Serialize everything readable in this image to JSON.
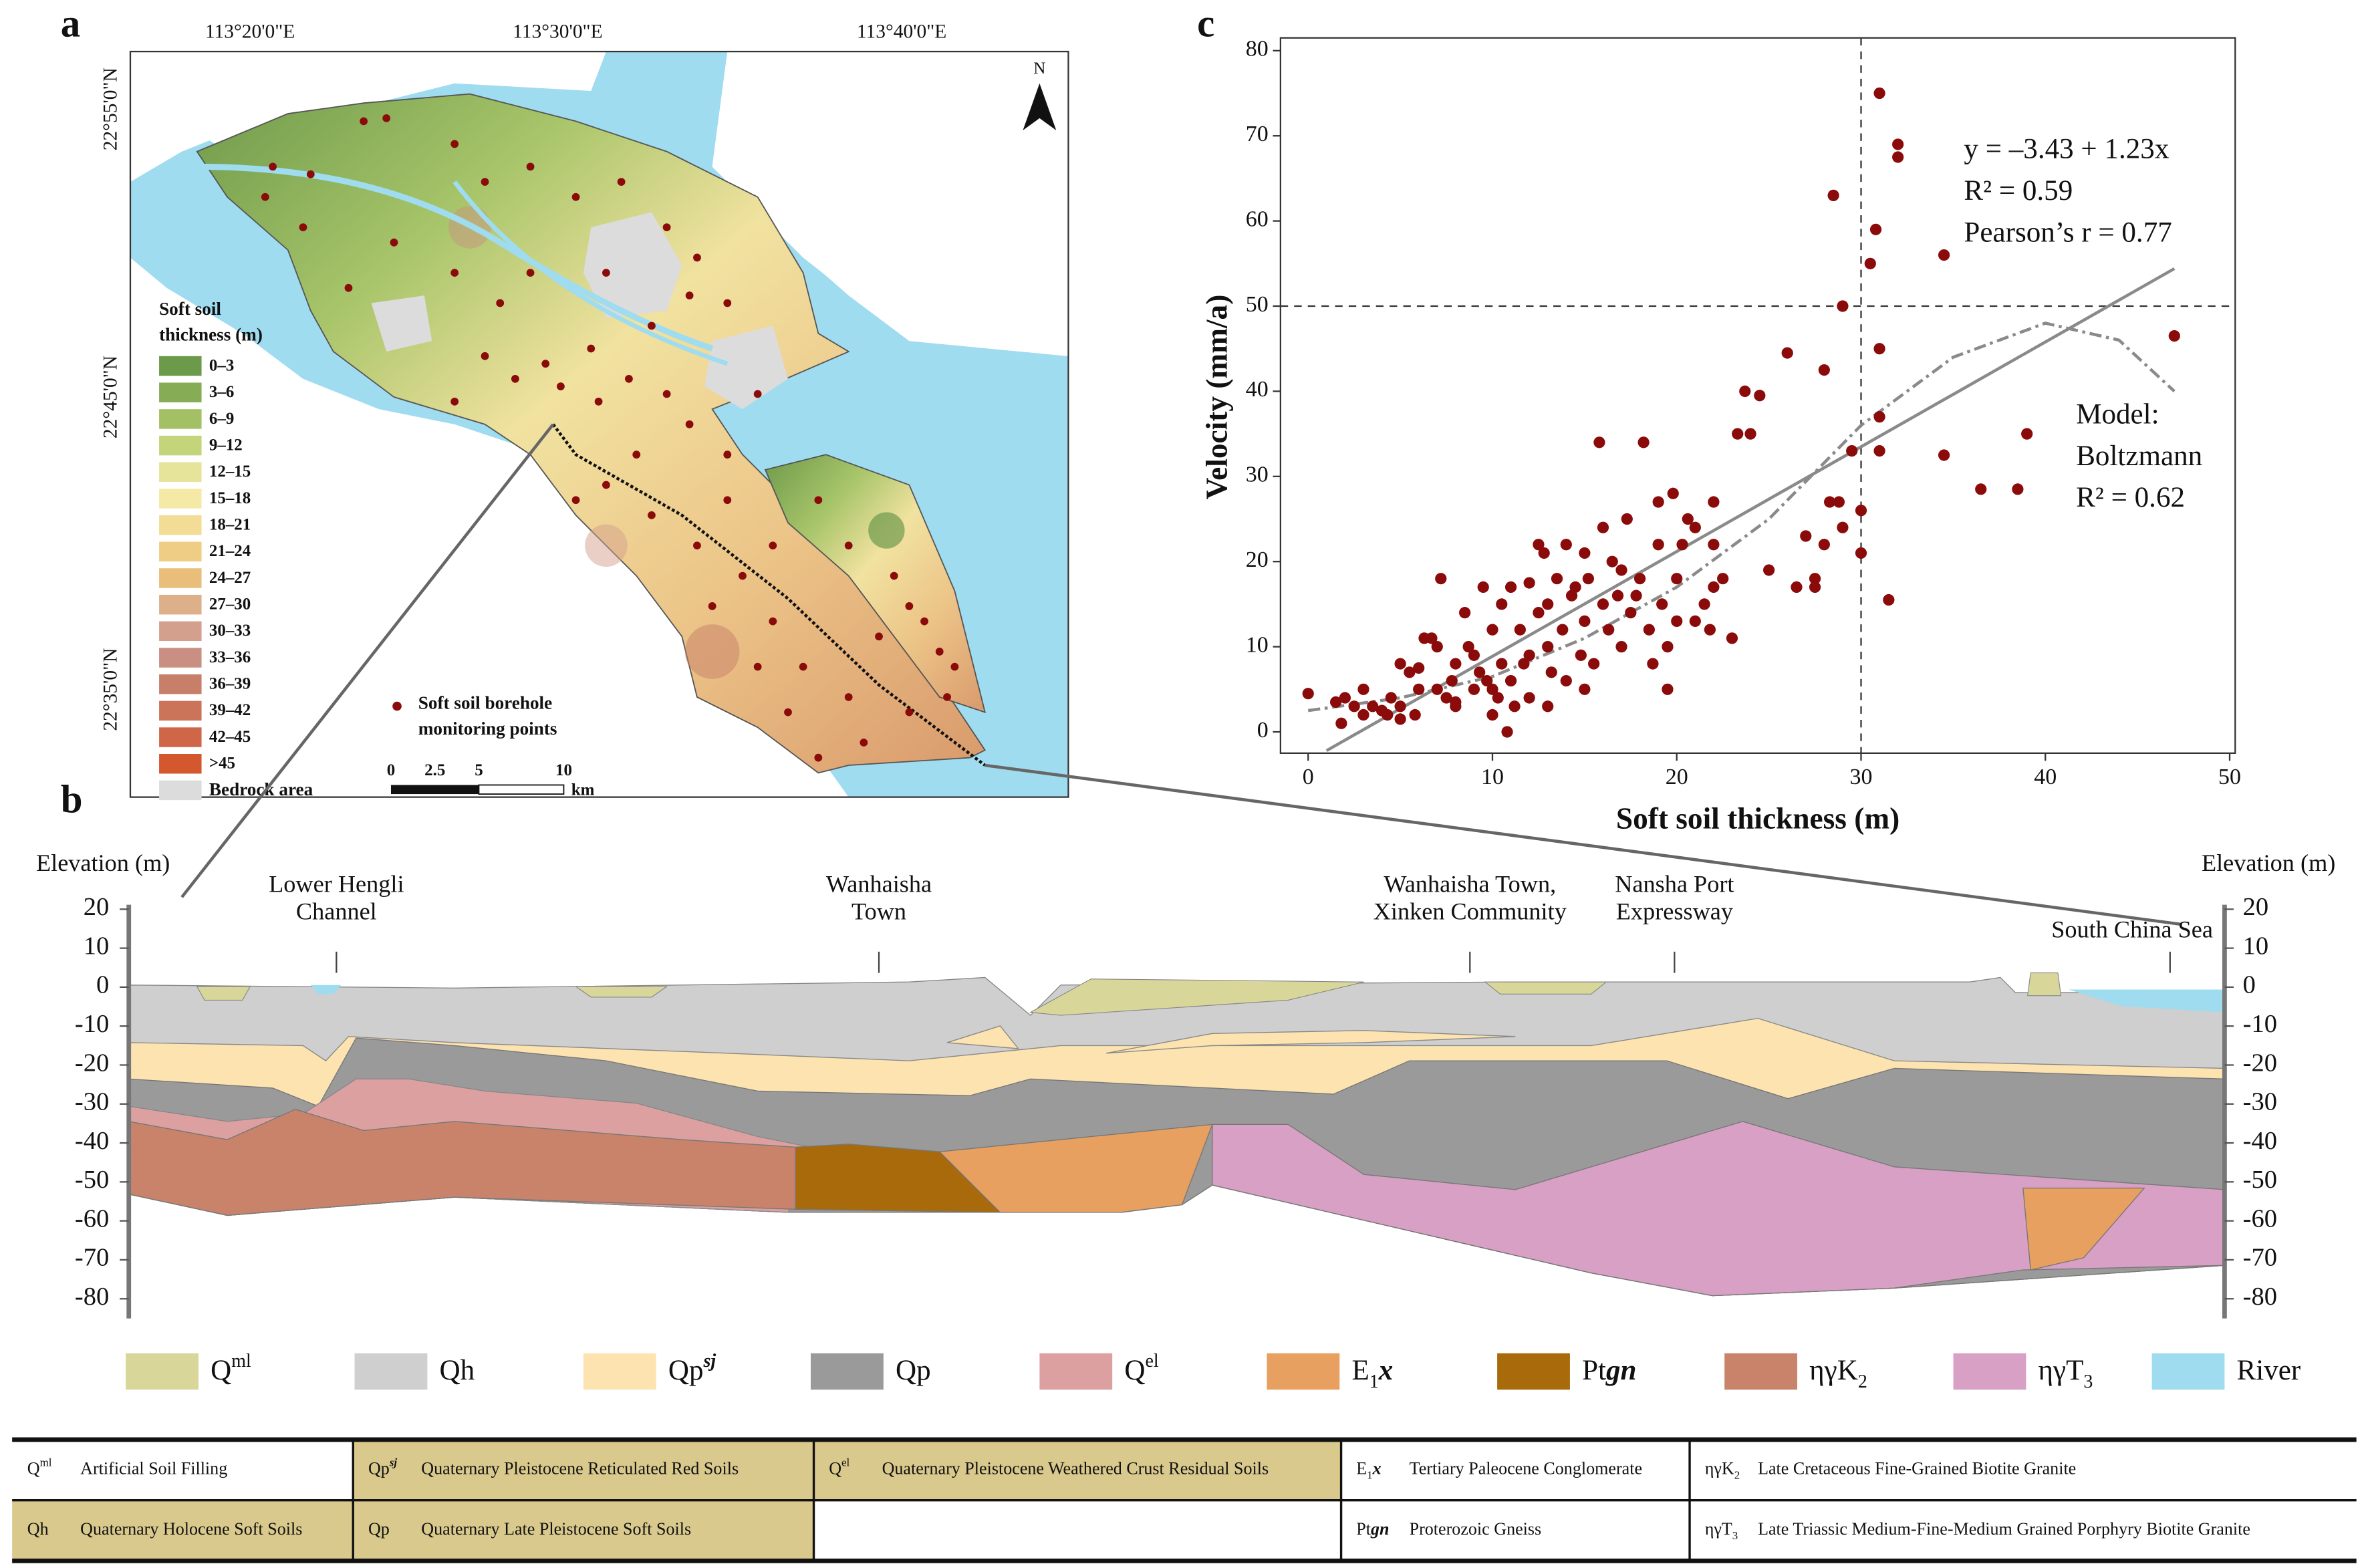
{
  "panels": {
    "a": "a",
    "b": "b",
    "c": "c"
  },
  "chart_data": {
    "type": "scatter",
    "xlabel": "Soft soil thickness (m)",
    "ylabel": "Velocity (mm/a)",
    "xlim": [
      -1.5,
      50.3
    ],
    "ylim": [
      -2.5,
      81.5
    ],
    "xticks": [
      0,
      10,
      20,
      30,
      40,
      50
    ],
    "yticks": [
      0,
      10,
      20,
      30,
      40,
      50,
      60,
      70,
      80
    ],
    "color": "#8b0a0a",
    "ref_x": 30,
    "ref_y": 50,
    "annotations": [
      "y = –3.43 + 1.23x",
      "R² = 0.59",
      "Pearson’s r = 0.77"
    ],
    "model_annotations": [
      "Model:",
      "Boltzmann",
      "R² = 0.62"
    ],
    "x": [
      0,
      1.5,
      1.8,
      2,
      2.5,
      3,
      3,
      3.5,
      4,
      4.3,
      4.5,
      5,
      5,
      5.5,
      5.8,
      6,
      6,
      6.3,
      6.7,
      7,
      7,
      7.2,
      7.5,
      7.8,
      8,
      8,
      8.5,
      8.7,
      9,
      9,
      9.5,
      9.7,
      10,
      10,
      10,
      10.3,
      10.5,
      10.8,
      11,
      11,
      11.2,
      11.5,
      11.7,
      12,
      12,
      12,
      12.5,
      12.8,
      13,
      13,
      13.2,
      13.5,
      13.8,
      14,
      14,
      14.3,
      14.5,
      14.8,
      15,
      15,
      15.2,
      15.5,
      15.8,
      16,
      16,
      16.3,
      16.5,
      16.8,
      17,
      17,
      17.3,
      17.5,
      17.8,
      18,
      18.2,
      18.5,
      18.7,
      19,
      19,
      19.2,
      19.5,
      19.8,
      20,
      20,
      20.3,
      20.6,
      21,
      21,
      21.5,
      21.8,
      22,
      22,
      22.5,
      23,
      23.3,
      23.7,
      24,
      24.5,
      25,
      26,
      26.5,
      27,
      27.5,
      27.5,
      28,
      28,
      28.3,
      28.5,
      28.8,
      29,
      29,
      29.5,
      30,
      30,
      30.5,
      30.8,
      31,
      31,
      31,
      31,
      31.5,
      32,
      32,
      34.5,
      34.5,
      36.5,
      38.5,
      39,
      47,
      5,
      8,
      9.3,
      10.5,
      13,
      19.5,
      22,
      15,
      12.5
    ],
    "values": [
      4.5,
      3.5,
      1,
      4,
      3,
      2,
      5,
      3,
      2.5,
      2,
      4,
      1.5,
      3,
      7,
      2,
      7.5,
      5,
      11,
      11,
      10,
      5,
      18,
      4,
      6,
      3,
      8,
      14,
      10,
      9,
      5,
      17,
      6,
      2,
      12,
      5,
      4,
      15,
      0,
      6,
      17,
      3,
      12,
      8,
      9,
      4,
      17.5,
      14,
      21,
      15,
      10,
      7,
      18,
      12,
      6,
      22,
      16,
      17,
      9,
      21,
      13,
      18,
      8,
      34,
      15,
      24,
      12,
      20,
      16,
      19,
      10,
      25,
      14,
      16,
      18,
      34,
      12,
      8,
      22,
      27,
      15,
      10,
      28,
      13,
      18,
      22,
      25,
      24,
      13,
      15,
      12,
      17,
      27,
      18,
      11,
      35,
      40,
      35,
      39.5,
      19,
      44.5,
      17,
      23,
      18,
      17,
      22,
      42.5,
      27,
      63,
      27,
      50,
      24,
      33,
      21,
      26,
      55,
      59,
      37,
      45,
      33,
      75,
      15.5,
      69,
      67.5,
      56,
      32.5,
      28.5,
      28.5,
      35,
      46.5,
      8,
      3.5,
      7,
      8,
      3,
      5,
      22,
      5,
      22
    ],
    "fit_line": {
      "x": [
        1,
        47
      ],
      "values": [
        -2.2,
        54.4
      ],
      "color": "#8a8a8a"
    },
    "fit_curve": {
      "x": [
        0,
        5,
        10,
        15,
        20,
        25,
        30,
        35,
        40,
        44,
        47
      ],
      "values": [
        2.5,
        4,
        6.5,
        11,
        17,
        25,
        36,
        44,
        48,
        46,
        40
      ],
      "color": "#8a8a8a"
    }
  },
  "map": {
    "lon_labels": [
      "113°20'0\"E",
      "113°30'0\"E",
      "113°40'0\"E"
    ],
    "lat_labels": [
      "22°55'0\"N",
      "22°45'0\"N",
      "22°35'0\"N"
    ],
    "north": "N",
    "legend_title": [
      "Soft soil",
      "thickness (m)"
    ],
    "classes": [
      {
        "label": "0–3",
        "color": "#6b9a4a"
      },
      {
        "label": "3–6",
        "color": "#86ad55"
      },
      {
        "label": "6–9",
        "color": "#a3c064"
      },
      {
        "label": "9–12",
        "color": "#c4d47a"
      },
      {
        "label": "12–15",
        "color": "#e5e49a"
      },
      {
        "label": "15–18",
        "color": "#f5e9a6"
      },
      {
        "label": "18–21",
        "color": "#f3dc95"
      },
      {
        "label": "21–24",
        "color": "#f0cd85"
      },
      {
        "label": "24–27",
        "color": "#e9bd7a"
      },
      {
        "label": "27–30",
        "color": "#ddb08a"
      },
      {
        "label": "30–33",
        "color": "#d4a08e"
      },
      {
        "label": "33–36",
        "color": "#c98f82"
      },
      {
        "label": "36–39",
        "color": "#c87f6a"
      },
      {
        "label": "39–42",
        "color": "#cc7459"
      },
      {
        "label": "42–45",
        "color": "#d06648"
      },
      {
        "label": ">45",
        "color": "#d4582e"
      }
    ],
    "bedrock": {
      "label": "Bedrock area",
      "color": "#dcdcdc"
    },
    "points_label": [
      "Soft soil borehole",
      "monitoring points"
    ],
    "scale": {
      "labels": [
        "0",
        "2.5",
        "5",
        "10"
      ],
      "unit": "km"
    }
  },
  "section": {
    "ylabel_left": "Elevation (m)",
    "ylabel_right": "Elevation (m)",
    "ylim": [
      -85,
      21
    ],
    "yticks": [
      20,
      10,
      0,
      -10,
      -20,
      -30,
      -40,
      -50,
      -60,
      -70,
      -80
    ],
    "places": [
      {
        "lines": [
          "Lower Hengli",
          "Channel"
        ]
      },
      {
        "lines": [
          "Wanhaisha",
          "Town"
        ]
      },
      {
        "lines": [
          "Wanhaisha Town,",
          "Xinken Community"
        ]
      },
      {
        "lines": [
          "Nansha Port",
          "Expressway"
        ]
      },
      {
        "lines": [
          "South China Sea"
        ]
      }
    ],
    "legend": [
      {
        "color": "#d9d69a",
        "label": [
          {
            "t": "Q"
          },
          {
            "t": "ml",
            "sup": true
          }
        ]
      },
      {
        "color": "#cfcfcf",
        "label": [
          {
            "t": "Qh"
          }
        ]
      },
      {
        "color": "#fde3b0",
        "label": [
          {
            "t": "Qp"
          },
          {
            "t": "sj",
            "sup": true,
            "it": true
          }
        ]
      },
      {
        "color": "#9a9a9a",
        "label": [
          {
            "t": "Qp"
          }
        ]
      },
      {
        "color": "#dca0a0",
        "label": [
          {
            "t": "Q"
          },
          {
            "t": "el",
            "sup": true
          }
        ]
      },
      {
        "color": "#e8a060",
        "label": [
          {
            "t": "E"
          },
          {
            "t": "1",
            "sub": true
          },
          {
            "t": "x",
            "it": true
          }
        ]
      },
      {
        "color": "#a86a0a",
        "label": [
          {
            "t": "Pt"
          },
          {
            "t": "gn",
            "it": true
          }
        ]
      },
      {
        "color": "#c8836a",
        "label": [
          {
            "t": "ηγK"
          },
          {
            "t": "2",
            "sub": true
          }
        ]
      },
      {
        "color": "#d8a0c4",
        "label": [
          {
            "t": "ηγT"
          },
          {
            "t": "3",
            "sub": true
          }
        ]
      },
      {
        "color": "#9fdcef",
        "label": [
          {
            "t": "River"
          }
        ]
      }
    ]
  },
  "legend_table": {
    "shade": "#d9c98c",
    "rows": [
      [
        {
          "symbol": [
            {
              "t": "Q"
            },
            {
              "t": "ml",
              "sup": true
            }
          ],
          "text": "Artificial Soil Filling"
        },
        {
          "symbol": [
            {
              "t": "Qp"
            },
            {
              "t": "sj",
              "sup": true,
              "it": true
            }
          ],
          "text": "Quaternary Pleistocene Reticulated Red Soils",
          "shaded": true
        },
        {
          "symbol": [
            {
              "t": "Q"
            },
            {
              "t": "el",
              "sup": true
            }
          ],
          "text": "Quaternary Pleistocene Weathered Crust Residual Soils",
          "shaded": true
        },
        {
          "symbol": [
            {
              "t": "E"
            },
            {
              "t": "1",
              "sub": true
            },
            {
              "t": "x",
              "it": true
            }
          ],
          "text": "Tertiary Paleocene Conglomerate"
        },
        {
          "symbol": [
            {
              "t": "ηγK"
            },
            {
              "t": "2",
              "sub": true
            }
          ],
          "text": "Late Cretaceous Fine-Grained Biotite Granite"
        }
      ],
      [
        {
          "symbol": [
            {
              "t": "Qh"
            }
          ],
          "text": "Quaternary Holocene Soft Soils",
          "shaded": true
        },
        {
          "symbol": [
            {
              "t": "Qp"
            }
          ],
          "text": "Quaternary Late Pleistocene Soft Soils",
          "shaded": true
        },
        null,
        {
          "symbol": [
            {
              "t": "Pt"
            },
            {
              "t": "gn",
              "it": true
            }
          ],
          "text": "Proterozoic Gneiss"
        },
        {
          "symbol": [
            {
              "t": "ηγT"
            },
            {
              "t": "3",
              "sub": true
            }
          ],
          "text": "Late Triassic Medium-Fine-Medium Grained Porphyry Biotite Granite"
        }
      ]
    ]
  }
}
